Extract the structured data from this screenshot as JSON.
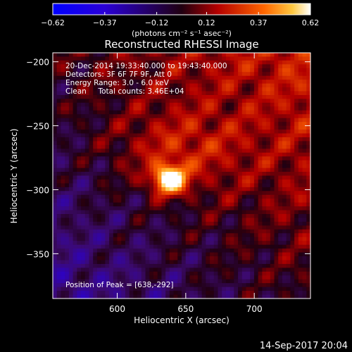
{
  "chart_data": {
    "type": "heatmap",
    "title": "Reconstructed RHESSI Image",
    "xlabel": "Heliocentric X (arcsec)",
    "ylabel": "Heliocentric Y (arcsec)",
    "xlim": [
      553,
      741
    ],
    "ylim": [
      -385,
      -193
    ],
    "x_ticks": [
      600,
      650,
      700
    ],
    "y_ticks": [
      -200,
      -250,
      -300,
      -350
    ],
    "x_tick_labels": [
      "600",
      "650",
      "700"
    ],
    "y_tick_labels": [
      "−200",
      "−250",
      "−300",
      "−350"
    ],
    "colorbar": {
      "range": [
        -0.62,
        0.62
      ],
      "ticks": [
        -0.62,
        -0.37,
        -0.12,
        0.12,
        0.37,
        0.62
      ],
      "tick_labels": [
        "−0.62",
        "−0.37",
        "−0.12",
        "0.12",
        "0.37",
        "0.62"
      ],
      "unit_label": "(photons cm⁻² s⁻¹ asec⁻²)"
    },
    "annotations": [
      "20-Dec-2014 19:33:40.000 to 19:43:40.000",
      "Detectors: 3F 6F 7F 9F, Att 0",
      "Energy Range: 3.0 - 6.0 keV",
      "Clean     Total counts: 3.46E+04"
    ],
    "peak_label": "Position of Peak = [638,-292]",
    "peak": [
      638,
      -292
    ],
    "source_peak_value": 0.62,
    "grid": false
  },
  "timestamp": "14-Sep-2017 20:04"
}
